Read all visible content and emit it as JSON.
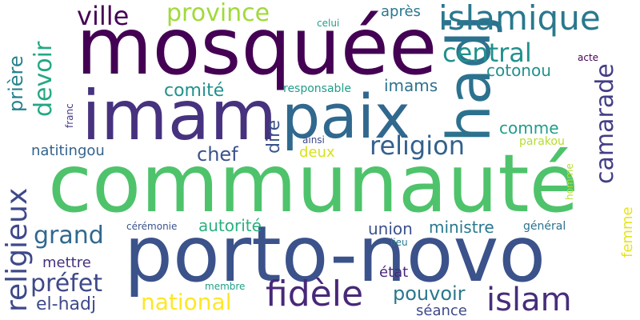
{
  "words": [
    {
      "text": "communauté",
      "color": "#4ec36b"
    },
    {
      "text": "mosquée",
      "color": "#440154"
    },
    {
      "text": "porto-novo",
      "color": "#3b528b"
    },
    {
      "text": "imam",
      "color": "#46327e"
    },
    {
      "text": "paix",
      "color": "#31688e"
    },
    {
      "text": "hadj",
      "color": "#2c728e"
    },
    {
      "text": "islamique",
      "color": "#2a788e"
    },
    {
      "text": "fidèle",
      "color": "#482878"
    },
    {
      "text": "islam",
      "color": "#472d7b"
    },
    {
      "text": "religieux",
      "color": "#3e4989"
    },
    {
      "text": "religion",
      "color": "#34618d"
    },
    {
      "text": "camarade",
      "color": "#433e85"
    },
    {
      "text": "central",
      "color": "#21918c"
    },
    {
      "text": "ville",
      "color": "#440154"
    },
    {
      "text": "province",
      "color": "#a0da39"
    },
    {
      "text": "devoir",
      "color": "#22a884"
    },
    {
      "text": "prière",
      "color": "#26828e"
    },
    {
      "text": "grand",
      "color": "#31688e"
    },
    {
      "text": "préfet",
      "color": "#3e4989"
    },
    {
      "text": "national",
      "color": "#fde725"
    },
    {
      "text": "pouvoir",
      "color": "#2a788e"
    },
    {
      "text": "el-hadj",
      "color": "#3f4a8a"
    },
    {
      "text": "chef",
      "color": "#3b528b"
    },
    {
      "text": "comité",
      "color": "#21918c"
    },
    {
      "text": "cotonou",
      "color": "#21918c"
    },
    {
      "text": "imams",
      "color": "#2c728e"
    },
    {
      "text": "natitingou",
      "color": "#33638d"
    },
    {
      "text": "comme",
      "color": "#1f9e89"
    },
    {
      "text": "autorité",
      "color": "#2ab07f"
    },
    {
      "text": "union",
      "color": "#3b528b"
    },
    {
      "text": "ministre",
      "color": "#2a788e"
    },
    {
      "text": "mettre",
      "color": "#46327e"
    },
    {
      "text": "dire",
      "color": "#3b528b"
    },
    {
      "text": "deux",
      "color": "#d8e219"
    },
    {
      "text": "état",
      "color": "#482878"
    },
    {
      "text": "séance",
      "color": "#3e4989"
    },
    {
      "text": "après",
      "color": "#2a788e"
    },
    {
      "text": "femme",
      "color": "#e5e419"
    },
    {
      "text": "responsable",
      "color": "#1f9e89"
    },
    {
      "text": "parakou",
      "color": "#b5de2b"
    },
    {
      "text": "général",
      "color": "#2c728e"
    },
    {
      "text": "cérémonie",
      "color": "#3b528b"
    },
    {
      "text": "acte",
      "color": "#440154"
    },
    {
      "text": "celui",
      "color": "#1fa187"
    },
    {
      "text": "franc",
      "color": "#443a83"
    },
    {
      "text": "ainsi",
      "color": "#3e4989"
    },
    {
      "text": "membre",
      "color": "#1fa187"
    },
    {
      "text": "lieu",
      "color": "#2a788e"
    },
    {
      "text": "homme",
      "color": "#b5de2b"
    }
  ]
}
